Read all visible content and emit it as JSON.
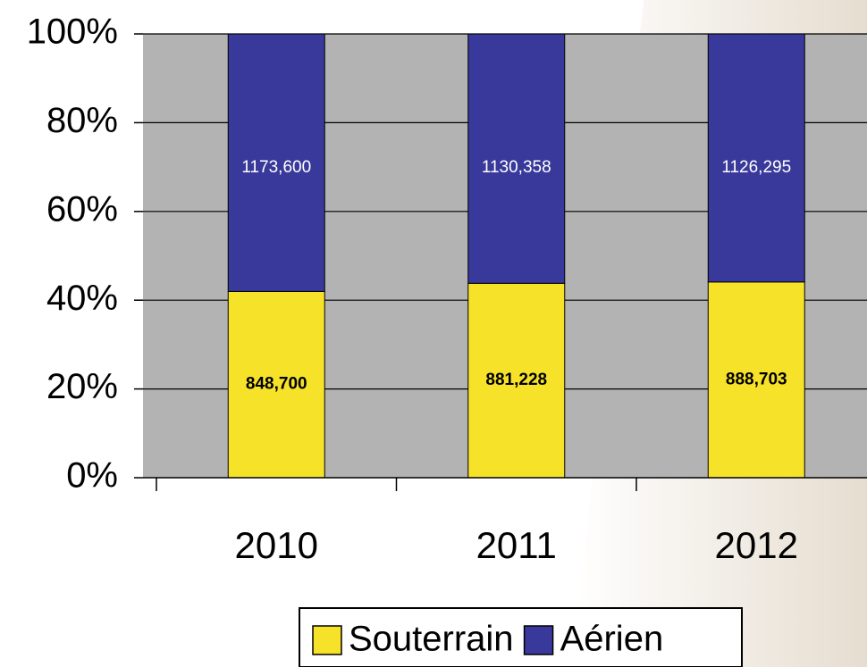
{
  "chart_data": {
    "type": "bar",
    "stacked": "percent",
    "categories": [
      "2010",
      "2011",
      "2012"
    ],
    "series": [
      {
        "name": "Souterrain",
        "color": "#f7e22a",
        "values": [
          848700,
          881228,
          888703
        ],
        "value_labels": [
          "848,700",
          "881,228",
          "888,703"
        ]
      },
      {
        "name": "Aérien",
        "color": "#39399b",
        "values": [
          1173600,
          1130358,
          1126295
        ],
        "value_labels": [
          "1173,600",
          "1130,358",
          "1126,295"
        ]
      }
    ],
    "ylim": [
      0,
      100
    ],
    "yticks": [
      {
        "value": 0,
        "label": "0%"
      },
      {
        "value": 20,
        "label": "20%"
      },
      {
        "value": 40,
        "label": "40%"
      },
      {
        "value": 60,
        "label": "60%"
      },
      {
        "value": 80,
        "label": "80%"
      },
      {
        "value": 100,
        "label": "100%"
      }
    ],
    "grid": true,
    "legend": "bottom"
  }
}
